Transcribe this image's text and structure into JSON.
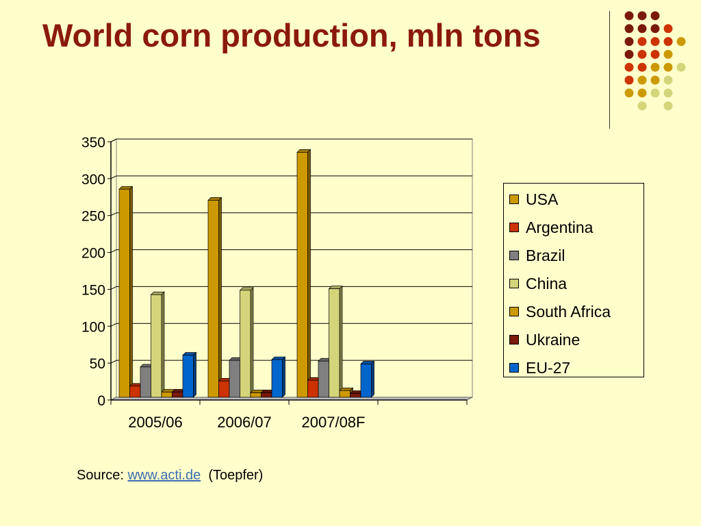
{
  "slide": {
    "title": "World corn production, mln tons",
    "source_prefix": "Source: ",
    "source_link": "www.acti.de",
    "source_suffix": "  (Toepfer)"
  },
  "colors": {
    "background": "#ffffcc",
    "title": "#8b1a0a",
    "dots": [
      "#7a1a0a",
      "#cc3300",
      "#cc9900",
      "#d4d47a"
    ]
  },
  "chart_data": {
    "type": "bar",
    "title": "",
    "xlabel": "",
    "ylabel": "",
    "ylim": [
      0,
      350
    ],
    "yticks": [
      "0",
      "50",
      "100",
      "150",
      "200",
      "250",
      "300",
      "350"
    ],
    "categories": [
      "2005/06",
      "2006/07",
      "2007/08F"
    ],
    "grid": true,
    "legend_position": "right",
    "series": [
      {
        "name": "USA",
        "color": "#cc9900",
        "values": [
          282,
          267,
          332
        ]
      },
      {
        "name": "Argentina",
        "color": "#cc3300",
        "values": [
          15,
          22,
          23
        ]
      },
      {
        "name": "Brazil",
        "color": "#808080",
        "values": [
          41,
          50,
          49
        ]
      },
      {
        "name": "China",
        "color": "#d4d47a",
        "values": [
          139,
          145,
          147
        ]
      },
      {
        "name": "South Africa",
        "color": "#cc9900",
        "values": [
          7,
          6,
          9
        ]
      },
      {
        "name": "Ukraine",
        "color": "#7a1a0a",
        "values": [
          7,
          6,
          5
        ]
      },
      {
        "name": "EU-27",
        "color": "#0066cc",
        "values": [
          57,
          51,
          45
        ]
      }
    ]
  }
}
